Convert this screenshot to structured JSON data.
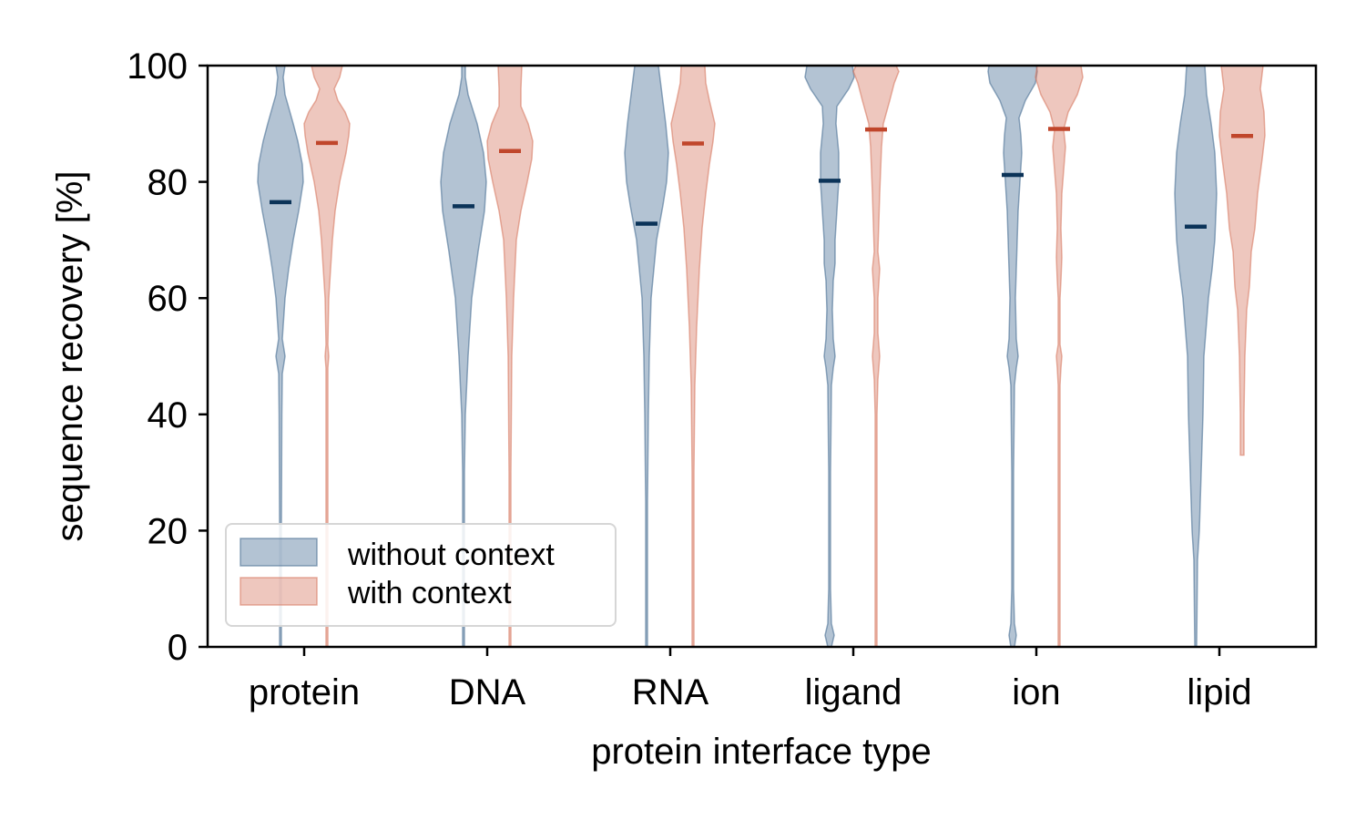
{
  "chart_data": {
    "type": "violin",
    "xlabel": "protein interface type",
    "ylabel": "sequence recovery [%]",
    "ylim": [
      0,
      100
    ],
    "yticks": [
      "0",
      "20",
      "40",
      "60",
      "80",
      "100"
    ],
    "categories": [
      "protein",
      "DNA",
      "RNA",
      "ligand",
      "ion",
      "lipid"
    ],
    "grid": false,
    "legend_position": "lower-left",
    "series": [
      {
        "name": "without context",
        "color": "#4a6f95",
        "median_color": "#0b3358",
        "medians": [
          76.5,
          75.8,
          72.8,
          80.2,
          81.2,
          72.3
        ],
        "ranges": [
          [
            0,
            100
          ],
          [
            0,
            100
          ],
          [
            0,
            100
          ],
          [
            0,
            100
          ],
          [
            0,
            100
          ],
          [
            0,
            100
          ]
        ]
      },
      {
        "name": "with context",
        "color": "#d77a63",
        "median_color": "#c0462b",
        "medians": [
          86.7,
          85.3,
          86.6,
          89.0,
          89.1,
          87.9
        ],
        "ranges": [
          [
            0,
            100
          ],
          [
            0,
            100
          ],
          [
            0,
            100
          ],
          [
            0,
            100
          ],
          [
            0,
            100
          ],
          [
            33,
            100
          ]
        ]
      }
    ]
  }
}
